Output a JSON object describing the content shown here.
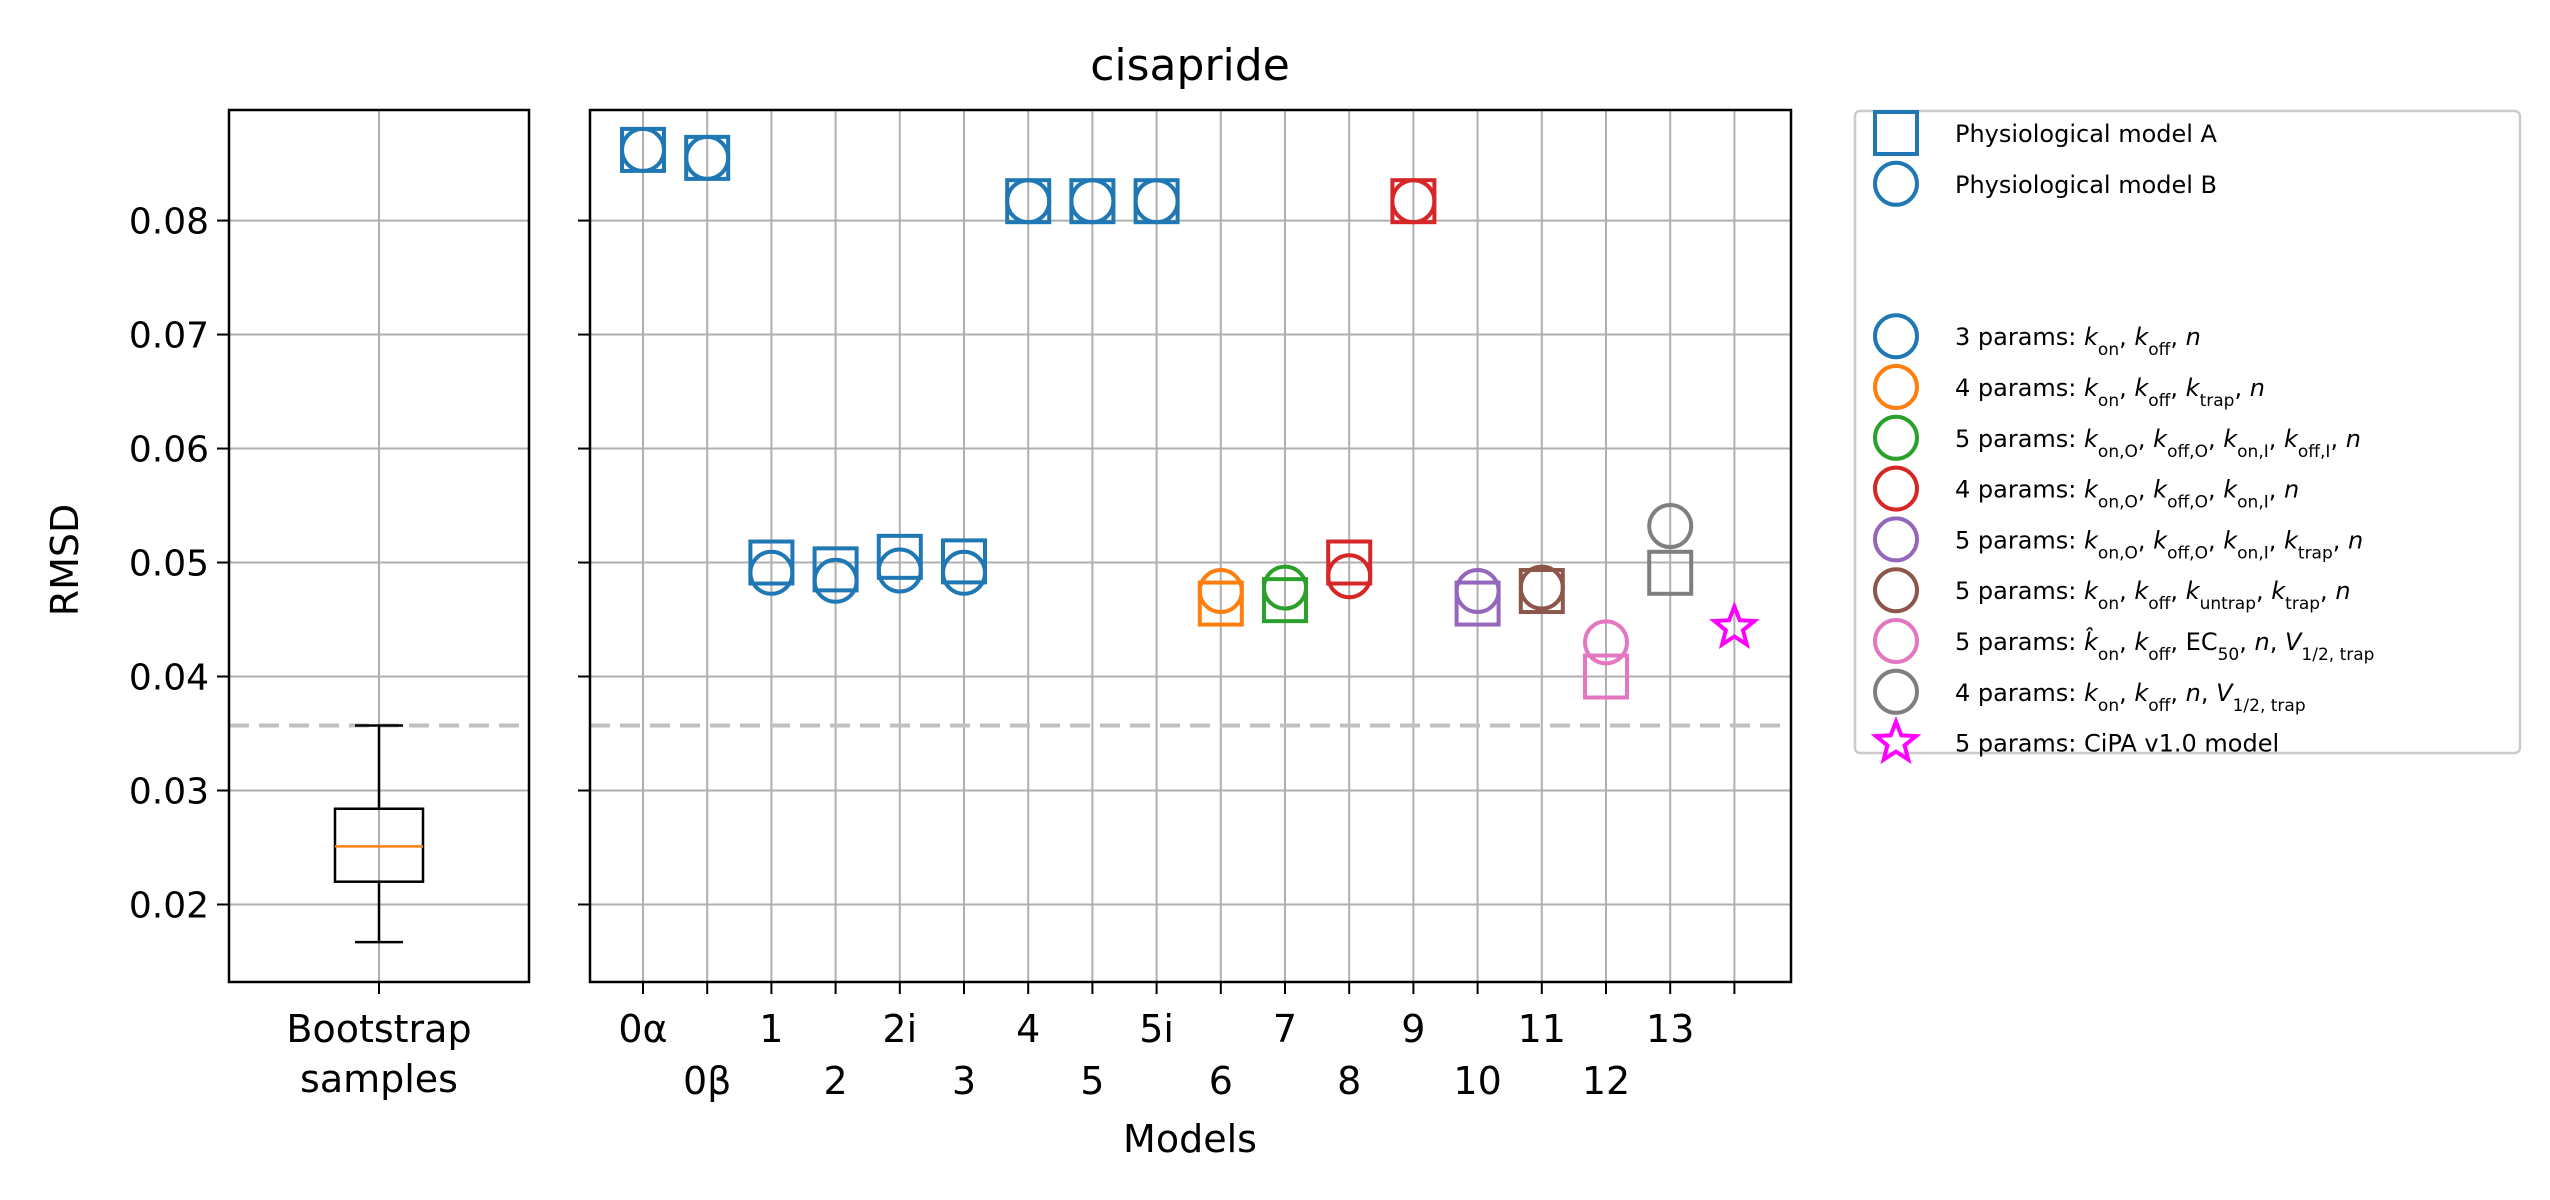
{
  "chart_data": [
    {
      "type": "box",
      "title": "",
      "xlabel": "",
      "ylabel": "RMSD",
      "ylim": [
        0.0132,
        0.0897
      ],
      "yticks": [
        0.02,
        0.03,
        0.04,
        0.05,
        0.06,
        0.07,
        0.08
      ],
      "ytick_labels": [
        "0.02",
        "0.03",
        "0.04",
        "0.05",
        "0.06",
        "0.07",
        "0.08"
      ],
      "category_lines": [
        "Bootstrap",
        "samples"
      ],
      "box": {
        "whisker_low": 0.0167,
        "q1": 0.022,
        "median": 0.0251,
        "q3": 0.0284,
        "whisker_high": 0.0357
      },
      "reference_line": 0.0357,
      "grid": true,
      "colors": {
        "box": "#000000",
        "median": "#ff7f0e",
        "grid": "#b0b0b0",
        "reference": "#c0c0c0"
      }
    },
    {
      "type": "scatter",
      "title": "cisapride",
      "xlabel": "Models",
      "ylabel": "",
      "ylim": [
        0.0132,
        0.0897
      ],
      "categories": [
        "0α",
        "0β",
        "1",
        "2",
        "2i",
        "3",
        "4",
        "5",
        "5i",
        "6",
        "7",
        "8",
        "9",
        "10",
        "11",
        "12",
        "13",
        ""
      ],
      "tick_labels_row1": [
        "0α",
        "1",
        "2i",
        "4",
        "5i",
        "7",
        "9",
        "11",
        "13"
      ],
      "tick_labels_row2": [
        "0β",
        "2",
        "3",
        "5",
        "6",
        "8",
        "10",
        "12"
      ],
      "reference_line": 0.0357,
      "grid": true,
      "series": [
        {
          "name": "Physiological model A",
          "marker": "square",
          "points": [
            {
              "x": "0α",
              "y": 0.0862,
              "color": "#1f77b4"
            },
            {
              "x": "0β",
              "y": 0.0855,
              "color": "#1f77b4"
            },
            {
              "x": "1",
              "y": 0.05,
              "color": "#1f77b4"
            },
            {
              "x": "2",
              "y": 0.0494,
              "color": "#1f77b4"
            },
            {
              "x": "2i",
              "y": 0.0505,
              "color": "#1f77b4"
            },
            {
              "x": "3",
              "y": 0.0501,
              "color": "#1f77b4"
            },
            {
              "x": "4",
              "y": 0.0817,
              "color": "#1f77b4"
            },
            {
              "x": "5",
              "y": 0.0817,
              "color": "#1f77b4"
            },
            {
              "x": "5i",
              "y": 0.0817,
              "color": "#1f77b4"
            },
            {
              "x": "6",
              "y": 0.0464,
              "color": "#ff7f0e"
            },
            {
              "x": "7",
              "y": 0.0467,
              "color": "#2ca02c"
            },
            {
              "x": "8",
              "y": 0.05,
              "color": "#d62728"
            },
            {
              "x": "9",
              "y": 0.0817,
              "color": "#d62728"
            },
            {
              "x": "10",
              "y": 0.0464,
              "color": "#9467bd"
            },
            {
              "x": "11",
              "y": 0.0475,
              "color": "#8c564b"
            },
            {
              "x": "12",
              "y": 0.04,
              "color": "#e377c2"
            },
            {
              "x": "13",
              "y": 0.0491,
              "color": "#7f7f7f"
            }
          ]
        },
        {
          "name": "Physiological model B",
          "marker": "circle",
          "points": [
            {
              "x": "0α",
              "y": 0.0862,
              "color": "#1f77b4"
            },
            {
              "x": "0β",
              "y": 0.0855,
              "color": "#1f77b4"
            },
            {
              "x": "1",
              "y": 0.0491,
              "color": "#1f77b4"
            },
            {
              "x": "2",
              "y": 0.0484,
              "color": "#1f77b4"
            },
            {
              "x": "2i",
              "y": 0.0493,
              "color": "#1f77b4"
            },
            {
              "x": "3",
              "y": 0.0491,
              "color": "#1f77b4"
            },
            {
              "x": "4",
              "y": 0.0817,
              "color": "#1f77b4"
            },
            {
              "x": "5",
              "y": 0.0817,
              "color": "#1f77b4"
            },
            {
              "x": "5i",
              "y": 0.0817,
              "color": "#1f77b4"
            },
            {
              "x": "6",
              "y": 0.0475,
              "color": "#ff7f0e"
            },
            {
              "x": "7",
              "y": 0.0478,
              "color": "#2ca02c"
            },
            {
              "x": "8",
              "y": 0.0488,
              "color": "#d62728"
            },
            {
              "x": "9",
              "y": 0.0817,
              "color": "#d62728"
            },
            {
              "x": "10",
              "y": 0.0475,
              "color": "#9467bd"
            },
            {
              "x": "11",
              "y": 0.0478,
              "color": "#8c564b"
            },
            {
              "x": "12",
              "y": 0.043,
              "color": "#e377c2"
            },
            {
              "x": "13",
              "y": 0.0532,
              "color": "#7f7f7f"
            }
          ]
        },
        {
          "name": "5 params: CiPA v1.0 model",
          "marker": "star",
          "points": [
            {
              "x": "",
              "y": 0.0443,
              "color": "#ff00ff"
            }
          ]
        }
      ],
      "legend": {
        "placement": "outside-right",
        "items": [
          {
            "marker": "square",
            "color": "#1f77b4",
            "prefix": "Physiological model A",
            "parts": []
          },
          {
            "marker": "circle",
            "color": "#1f77b4",
            "prefix": "Physiological model B",
            "parts": []
          },
          {
            "marker": "none",
            "color": "",
            "prefix": "",
            "parts": []
          },
          {
            "marker": "none",
            "color": "",
            "prefix": "",
            "parts": []
          },
          {
            "marker": "circle",
            "color": "#1f77b4",
            "prefix": "3 params: ",
            "parts": [
              [
                "k",
                "on"
              ],
              [
                "sep",
                ", "
              ],
              [
                "k",
                "off"
              ],
              [
                "sep",
                ", "
              ],
              [
                "n",
                ""
              ]
            ]
          },
          {
            "marker": "circle",
            "color": "#ff7f0e",
            "prefix": "4 params: ",
            "parts": [
              [
                "k",
                "on"
              ],
              [
                "sep",
                ", "
              ],
              [
                "k",
                "off"
              ],
              [
                "sep",
                ", "
              ],
              [
                "k",
                "trap"
              ],
              [
                "sep",
                ", "
              ],
              [
                "n",
                ""
              ]
            ]
          },
          {
            "marker": "circle",
            "color": "#2ca02c",
            "prefix": "5 params: ",
            "parts": [
              [
                "k",
                "on,O"
              ],
              [
                "sep",
                ", "
              ],
              [
                "k",
                "off,O"
              ],
              [
                "sep",
                ", "
              ],
              [
                "k",
                "on,I"
              ],
              [
                "sep",
                ", "
              ],
              [
                "k",
                "off,I"
              ],
              [
                "sep",
                ", "
              ],
              [
                "n",
                ""
              ]
            ]
          },
          {
            "marker": "circle",
            "color": "#d62728",
            "prefix": "4 params: ",
            "parts": [
              [
                "k",
                "on,O"
              ],
              [
                "sep",
                ", "
              ],
              [
                "k",
                "off,O"
              ],
              [
                "sep",
                ", "
              ],
              [
                "k",
                "on,I"
              ],
              [
                "sep",
                ", "
              ],
              [
                "n",
                ""
              ]
            ]
          },
          {
            "marker": "circle",
            "color": "#9467bd",
            "prefix": "5 params: ",
            "parts": [
              [
                "k",
                "on,O"
              ],
              [
                "sep",
                ", "
              ],
              [
                "k",
                "off,O"
              ],
              [
                "sep",
                ", "
              ],
              [
                "k",
                "on,I"
              ],
              [
                "sep",
                ", "
              ],
              [
                "k",
                "trap"
              ],
              [
                "sep",
                ", "
              ],
              [
                "n",
                ""
              ]
            ]
          },
          {
            "marker": "circle",
            "color": "#8c564b",
            "prefix": "5 params: ",
            "parts": [
              [
                "k",
                "on"
              ],
              [
                "sep",
                ", "
              ],
              [
                "k",
                "off"
              ],
              [
                "sep",
                ", "
              ],
              [
                "k",
                "untrap"
              ],
              [
                "sep",
                ", "
              ],
              [
                "k",
                "trap"
              ],
              [
                "sep",
                ", "
              ],
              [
                "n",
                ""
              ]
            ]
          },
          {
            "marker": "circle",
            "color": "#e377c2",
            "prefix": "5 params: ",
            "parts": [
              [
                "khat",
                "on"
              ],
              [
                "sep",
                ", "
              ],
              [
                "k",
                "off"
              ],
              [
                "sep",
                ", "
              ],
              [
                "EC",
                "50"
              ],
              [
                "sep",
                ", "
              ],
              [
                "n",
                ""
              ],
              [
                "sep",
                ", "
              ],
              [
                "V",
                "1/2, trap"
              ]
            ]
          },
          {
            "marker": "circle",
            "color": "#7f7f7f",
            "prefix": "4 params: ",
            "parts": [
              [
                "k",
                "on"
              ],
              [
                "sep",
                ", "
              ],
              [
                "k",
                "off"
              ],
              [
                "sep",
                ", "
              ],
              [
                "n",
                ""
              ],
              [
                "sep",
                ", "
              ],
              [
                "V",
                "1/2, trap"
              ]
            ]
          },
          {
            "marker": "star",
            "color": "#ff00ff",
            "prefix": "5 params: CiPA v1.0 model",
            "parts": []
          }
        ]
      },
      "colors": {
        "grid": "#b0b0b0",
        "reference": "#c0c0c0"
      }
    }
  ]
}
